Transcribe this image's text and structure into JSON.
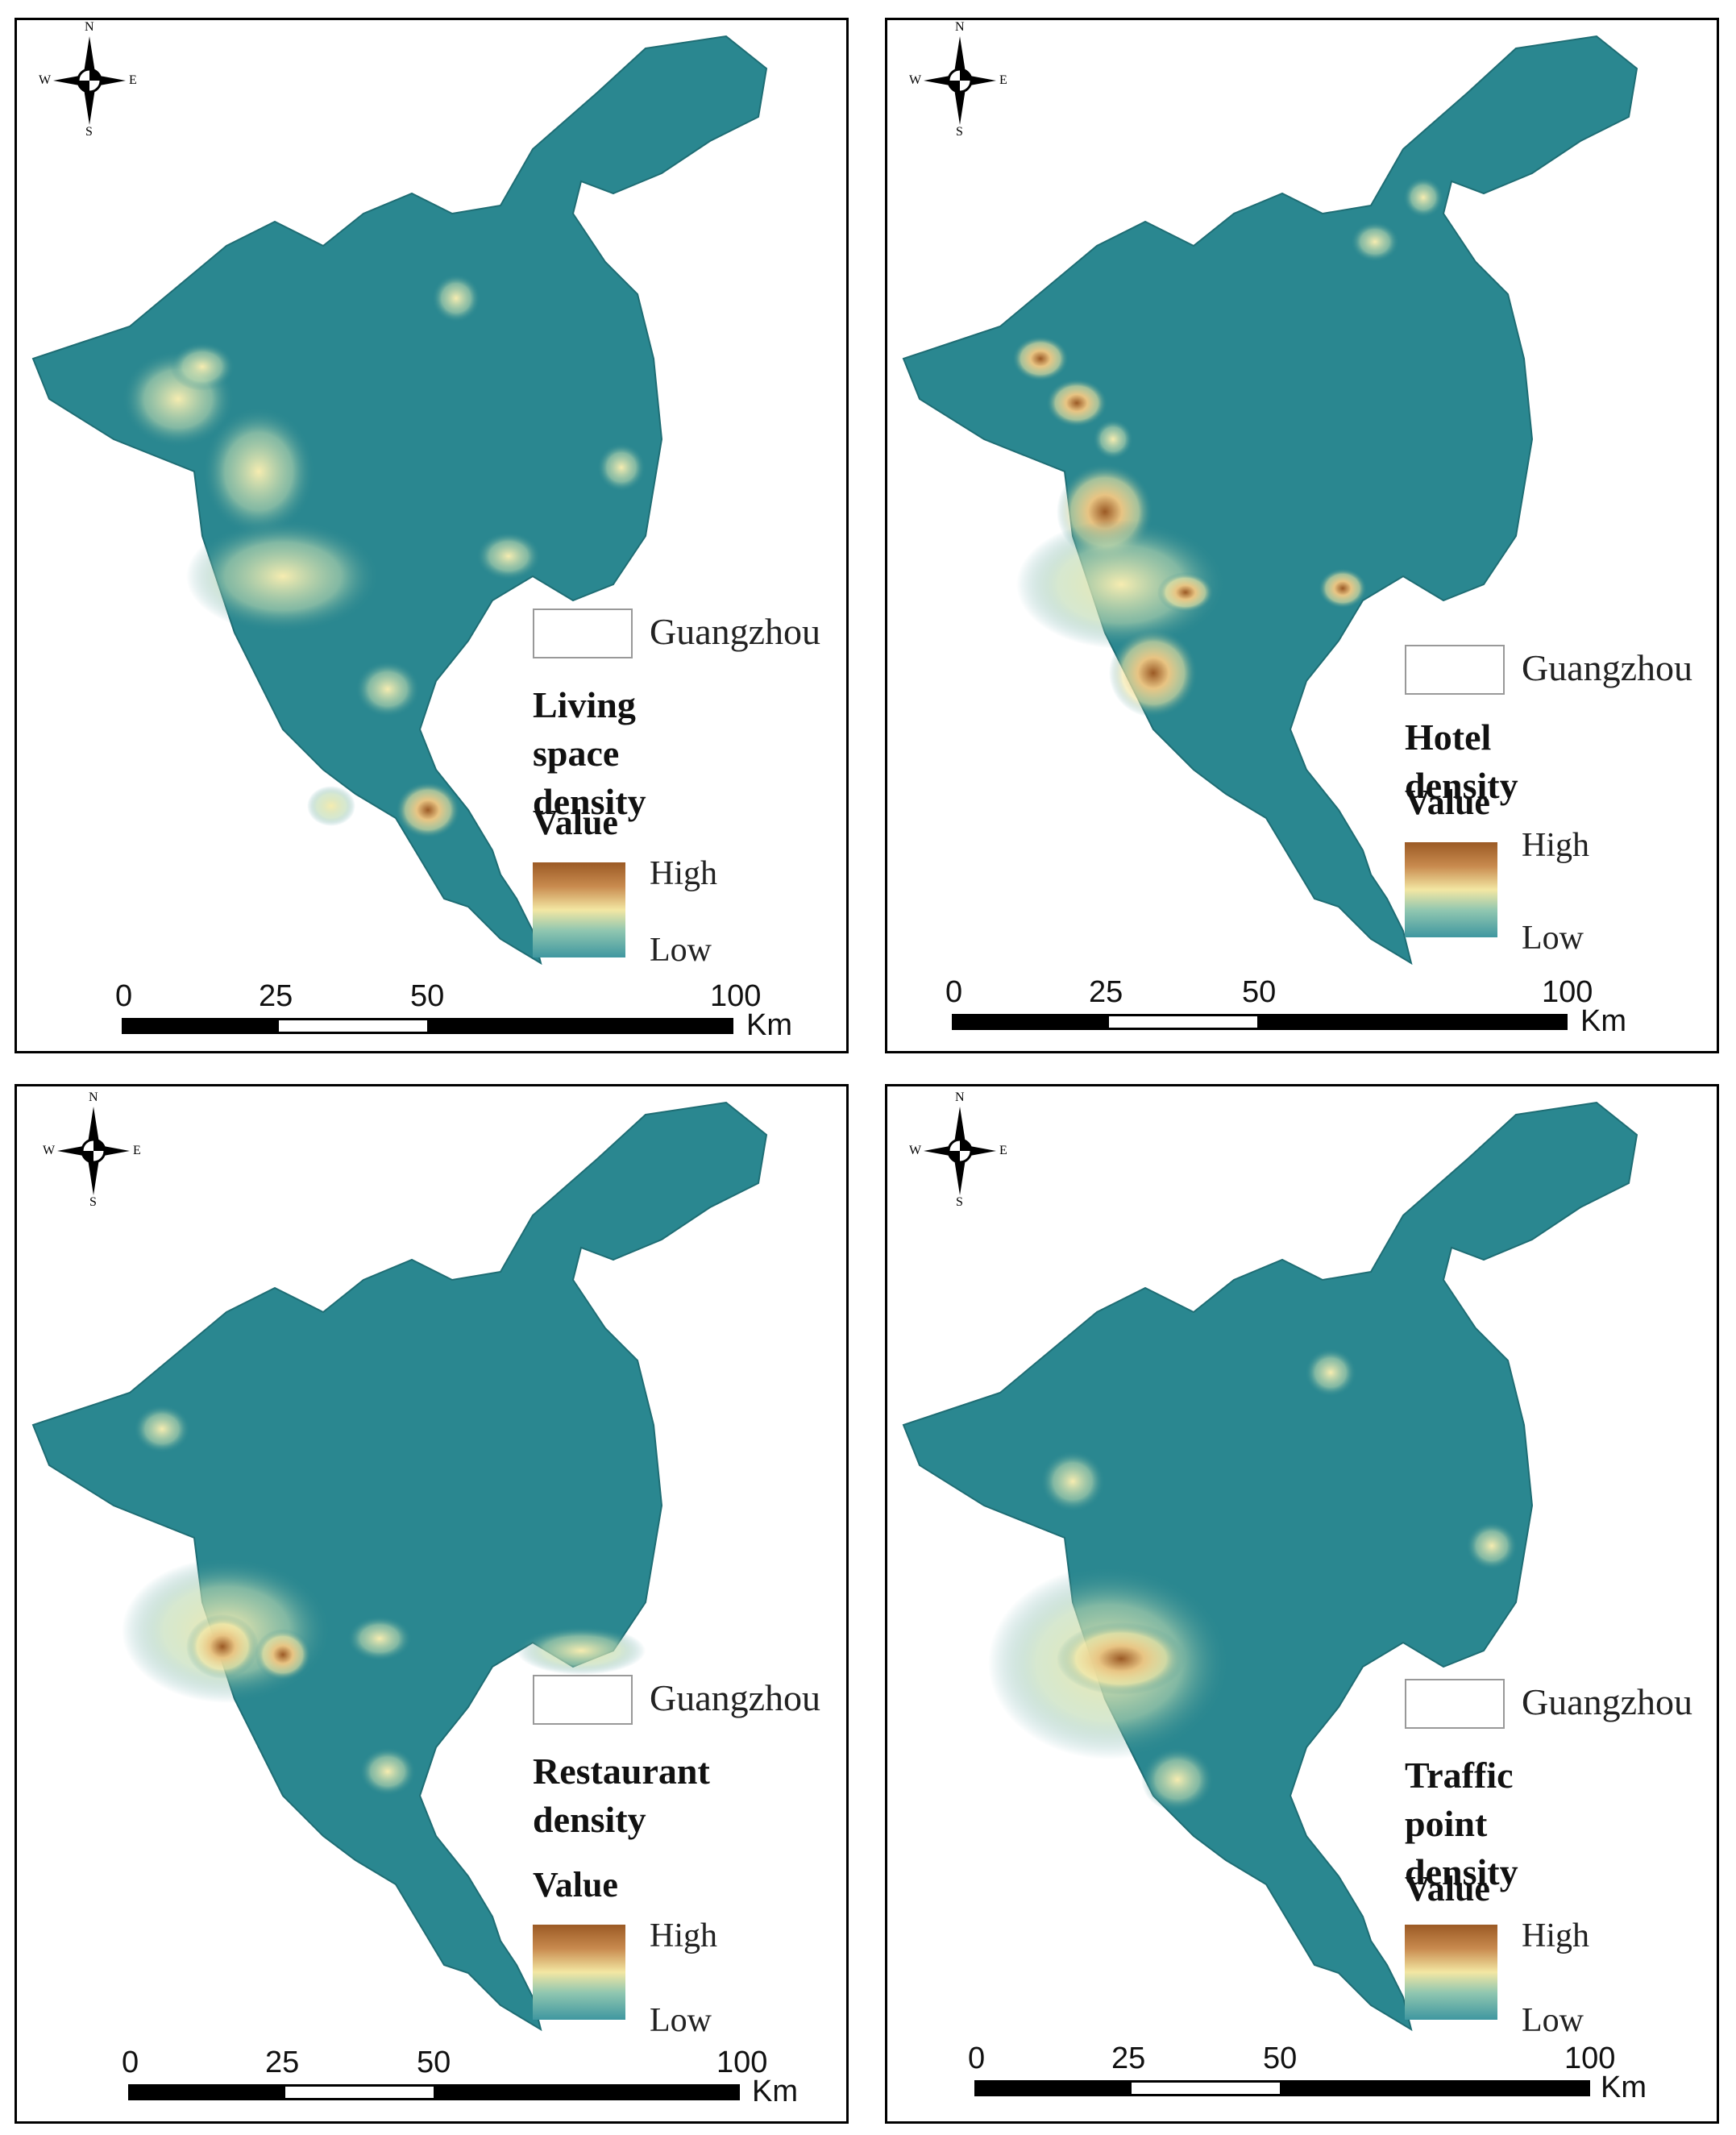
{
  "region_label": "Guangzhou",
  "value_label": "Value",
  "legend_high": "High",
  "legend_low": "Low",
  "compass": {
    "n": "N",
    "s": "S",
    "e": "E",
    "w": "W"
  },
  "scale": {
    "ticks": [
      "0",
      "25",
      "50",
      "100"
    ],
    "unit": "Km"
  },
  "colors": {
    "base": "#2a8790",
    "low": "#3f97a0",
    "mid": "#f3e7a3",
    "high": "#9b5a25"
  },
  "panels": [
    {
      "title": "Living space\ndensity"
    },
    {
      "title": "Hotel density"
    },
    {
      "title": "Restaurant\ndensity"
    },
    {
      "title": "Traffic point\ndensity"
    }
  ]
}
